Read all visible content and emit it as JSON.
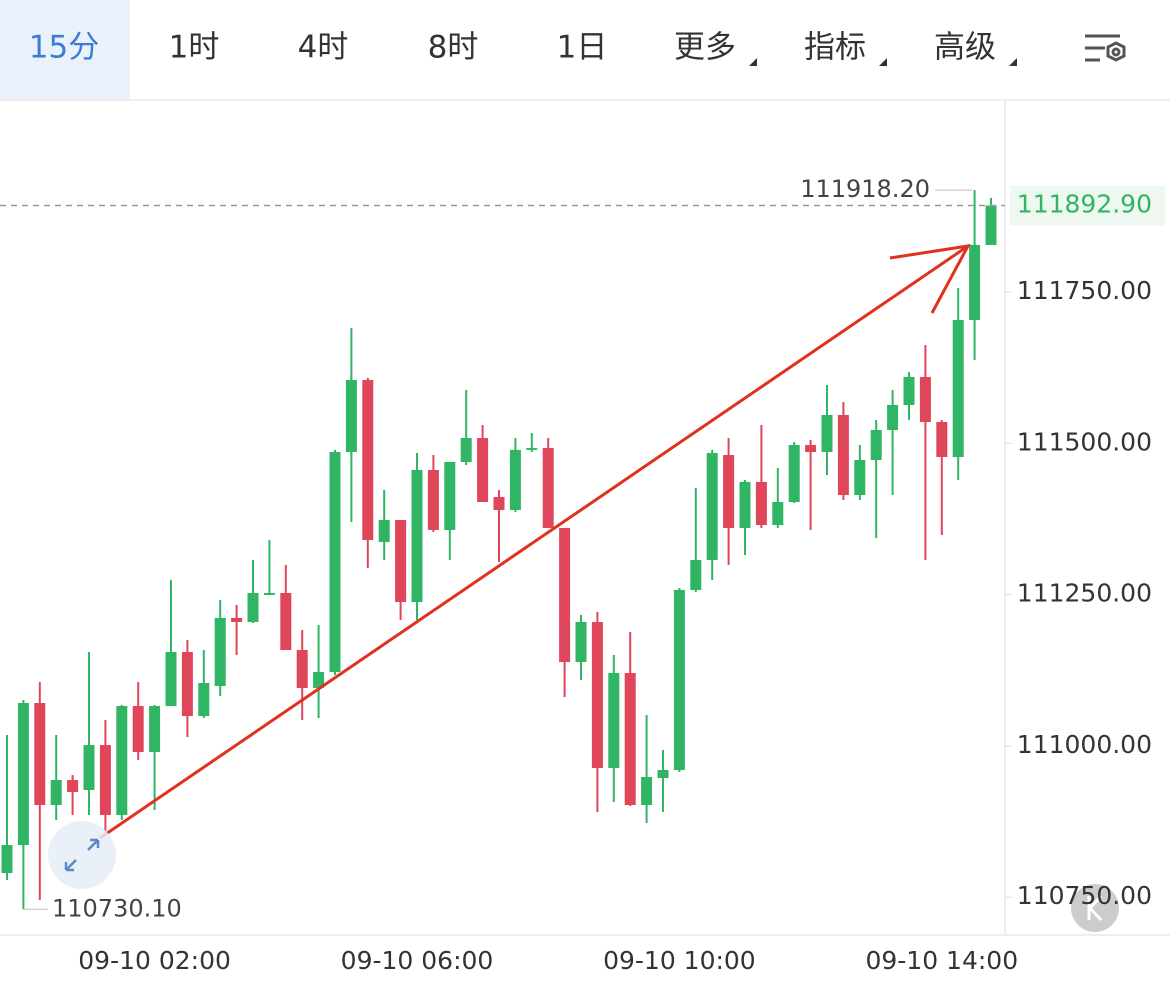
{
  "toolbar": {
    "tabs": [
      "15分",
      "1时",
      "4时",
      "8时",
      "1日",
      "更多",
      "指标",
      "高级"
    ],
    "active": 0,
    "dropdown_from": 5
  },
  "chart_data": {
    "type": "candlestick",
    "up_color": "#2fb563",
    "down_color": "#e0465a",
    "categories": [
      null,
      null,
      null,
      null,
      null,
      null,
      null,
      null,
      null,
      "09-10 02:00",
      null,
      null,
      null,
      null,
      null,
      null,
      null,
      null,
      null,
      null,
      null,
      null,
      null,
      null,
      null,
      "09-10 06:00",
      null,
      null,
      null,
      null,
      null,
      null,
      null,
      null,
      null,
      null,
      null,
      null,
      null,
      null,
      null,
      "09-10 10:00",
      null,
      null,
      null,
      null,
      null,
      null,
      null,
      null,
      null,
      null,
      null,
      null,
      null,
      null,
      null,
      "09-10 14:00",
      null,
      null,
      null
    ],
    "open": [
      110790.0,
      110836.3,
      111070.9,
      110902.4,
      110943.7,
      110927.2,
      111001.5,
      110885.9,
      111065.9,
      110989.9,
      111065.9,
      111155.2,
      111049.4,
      111099.0,
      111211.4,
      111204.8,
      111249.4,
      111252.7,
      111158.5,
      111095.7,
      111122.1,
      111485.6,
      111604.6,
      111336.9,
      111373.3,
      111237.8,
      111455.9,
      111356.8,
      111469.1,
      111508.8,
      111411.3,
      111389.8,
      111489.1,
      111492.3,
      111360.1,
      111138.6,
      111204.8,
      110963.5,
      111120.5,
      110902.4,
      110947.0,
      110960.2,
      111257.7,
      111307.2,
      111480.7,
      111360.1,
      111436.1,
      111365.0,
      111403.0,
      111497.2,
      111485.6,
      111546.8,
      111414.6,
      111472.4,
      111522.0,
      111563.3,
      111609.6,
      111535.2,
      111477.4,
      111703.7,
      111827.7
    ],
    "high": [
      111018.0,
      111075.9,
      111105.6,
      111018.0,
      110951.9,
      111155.2,
      111042.8,
      111067.6,
      111105.6,
      111067.6,
      111274.2,
      111175.0,
      111158.5,
      111241.1,
      111232.9,
      111307.2,
      111340.2,
      111298.9,
      111191.5,
      111199.8,
      111489.1,
      111690.5,
      111607.9,
      111422.8,
      111373.3,
      111484.0,
      111480.7,
      111469.1,
      111588.1,
      111530.2,
      111422.8,
      111508.8,
      111517.0,
      111508.8,
      111360.1,
      111216.4,
      111221.3,
      111150.2,
      111188.2,
      111051.1,
      110993.2,
      111261.0,
      111426.1,
      111489.1,
      111508.8,
      111439.4,
      111530.2,
      111459.2,
      111502.2,
      111505.5,
      111596.3,
      111568.2,
      111497.2,
      111538.5,
      111588.1,
      111617.8,
      111662.4,
      111538.5,
      111756.6,
      111918.2,
      111905.3
    ],
    "low": [
      110778.5,
      110730.1,
      110745.5,
      110877.6,
      110885.9,
      110885.9,
      110852.8,
      110877.6,
      110976.7,
      110894.1,
      111065.9,
      111014.7,
      111046.1,
      111082.5,
      111150.2,
      111203.2,
      111249.4,
      111158.5,
      111042.8,
      111046.1,
      111117.2,
      111370.0,
      111294.0,
      111307.2,
      111208.1,
      111208.1,
      111353.4,
      111307.2,
      111464.2,
      111403.0,
      111303.9,
      111386.5,
      111485.6,
      111360.1,
      111080.8,
      111108.9,
      110890.8,
      110907.3,
      110900.7,
      110872.6,
      110890.8,
      110956.9,
      111254.3,
      111274.2,
      111298.9,
      111315.4,
      111360.1,
      111360.1,
      111401.4,
      111356.8,
      111447.6,
      111406.3,
      111406.3,
      111343.5,
      111414.6,
      111538.5,
      111307.2,
      111348.5,
      111439.4,
      111637.6,
      111827.7
    ],
    "close": [
      110836.3,
      111070.9,
      110902.4,
      110943.7,
      110923.9,
      111001.5,
      110885.9,
      111065.9,
      110989.9,
      111065.9,
      111155.2,
      111049.4,
      111103.9,
      111211.4,
      111204.8,
      111252.7,
      111252.7,
      111158.5,
      111095.7,
      111122.1,
      111485.6,
      111604.6,
      111340.2,
      111373.3,
      111237.8,
      111455.9,
      111356.8,
      111469.1,
      111508.8,
      111403.0,
      111389.8,
      111489.1,
      111492.3,
      111360.1,
      111138.6,
      111204.8,
      110963.5,
      111120.5,
      110902.4,
      110948.6,
      110960.2,
      111257.7,
      111307.2,
      111484.0,
      111360.1,
      111436.1,
      111365.0,
      111403.0,
      111497.2,
      111485.6,
      111546.8,
      111414.6,
      111472.4,
      111522.0,
      111563.3,
      111609.6,
      111535.2,
      111477.4,
      111703.7,
      111827.7,
      111892.9
    ],
    "ylim": [
      110687.6,
      112067.2
    ],
    "yticks": [
      {
        "value": 110750,
        "label": "110750.00"
      },
      {
        "value": 111000,
        "label": "111000.00"
      },
      {
        "value": 111250,
        "label": "111250.00"
      },
      {
        "value": 111500,
        "label": "111500.00"
      },
      {
        "value": 111750,
        "label": "111750.00"
      }
    ],
    "last_price": {
      "value": 111892.9,
      "label": "111892.90"
    },
    "max_label": {
      "value": 111918.2,
      "label": "111918.20"
    },
    "min_label": {
      "value": 110730.1,
      "label": "110730.10"
    }
  }
}
